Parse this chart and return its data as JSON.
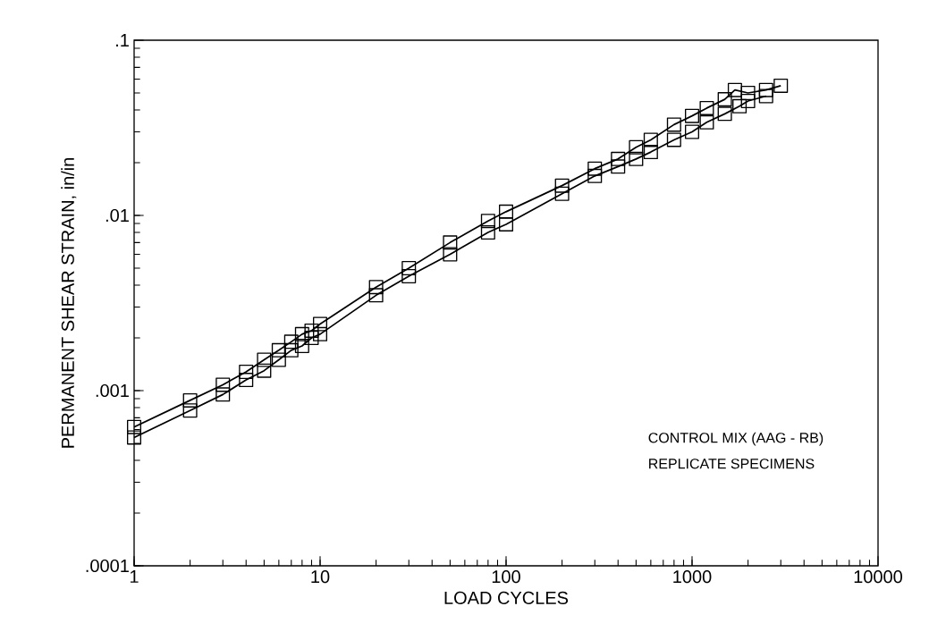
{
  "chart_data": {
    "type": "line",
    "xlabel": "LOAD CYCLES",
    "ylabel": "PERMANENT SHEAR STRAIN, in/in",
    "log": "xy",
    "marker": "square",
    "line_style": "solid",
    "xlim": [
      1,
      10000
    ],
    "ylim": [
      0.0001,
      0.1
    ],
    "xticks": [
      1,
      10,
      100,
      1000,
      10000
    ],
    "yticks": [
      {
        "value": 0.0001,
        "label": ".0001"
      },
      {
        "value": 0.001,
        "label": ".001"
      },
      {
        "value": 0.01,
        "label": ".01"
      },
      {
        "value": 0.1,
        "label": ".1"
      }
    ],
    "series": [
      {
        "color": "#000000",
        "x": [
          1,
          2,
          3,
          4,
          5,
          6,
          7,
          8,
          9,
          10,
          20,
          30,
          50,
          80,
          100,
          200,
          300,
          400,
          500,
          600,
          800,
          1000,
          1200,
          1500,
          1700,
          2000,
          2500,
          3000
        ],
        "values": [
          0.00062,
          0.00088,
          0.00108,
          0.00128,
          0.0015,
          0.0017,
          0.0019,
          0.0021,
          0.0022,
          0.0024,
          0.0039,
          0.005,
          0.007,
          0.0093,
          0.0105,
          0.0148,
          0.0185,
          0.021,
          0.0245,
          0.027,
          0.033,
          0.037,
          0.041,
          0.046,
          0.052,
          0.05,
          0.052,
          0.055
        ]
      },
      {
        "color": "#000000",
        "x": [
          1,
          2,
          3,
          4,
          5,
          6,
          7,
          8,
          9,
          10,
          20,
          30,
          50,
          80,
          100,
          200,
          300,
          400,
          500,
          600,
          800,
          1000,
          1200,
          1500,
          1800,
          2000,
          2500
        ],
        "values": [
          0.00054,
          0.00077,
          0.00095,
          0.00115,
          0.0013,
          0.0015,
          0.0017,
          0.0018,
          0.002,
          0.0021,
          0.0035,
          0.0045,
          0.006,
          0.008,
          0.0089,
          0.0133,
          0.0168,
          0.019,
          0.021,
          0.023,
          0.027,
          0.03,
          0.034,
          0.038,
          0.042,
          0.045,
          0.048
        ]
      }
    ],
    "annotations": [
      "CONTROL MIX (AAG - RB)",
      "REPLICATE SPECIMENS"
    ]
  }
}
